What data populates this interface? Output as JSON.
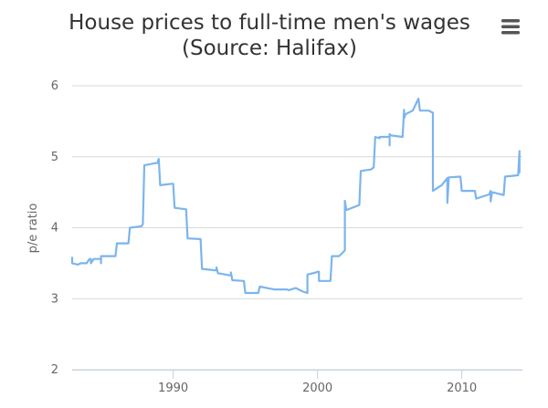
{
  "chart_data": {
    "type": "line",
    "title_line1": "House prices to full-time men's wages",
    "title_line2": "(Source: Halifax)",
    "xlabel": "",
    "ylabel": "p/e ratio",
    "xlim": [
      1983,
      2014.2
    ],
    "ylim": [
      2,
      6
    ],
    "yticks": [
      2,
      3,
      4,
      5,
      6
    ],
    "xticks": [
      1990,
      2000,
      2010
    ],
    "grid": "horizontal",
    "line_color": "#7cb5ec",
    "series": [
      {
        "x": [
          1983.0,
          1983.0,
          1983.4,
          1983.6,
          1984.0,
          1984.2,
          1984.3,
          1984.3,
          1984.5,
          1984.9,
          1985.0,
          1985.0,
          1985.0,
          1985.1,
          1986.0,
          1986.1,
          1986.9,
          1987.0,
          1987.8,
          1987.9,
          1988.0,
          1988.8,
          1988.9,
          1989.0,
          1989.1,
          1989.9,
          1990.0,
          1990.1,
          1990.9,
          1991.0,
          1991.8,
          1991.9,
          1992.0,
          1992.9,
          1993.0,
          1993.0,
          1993.1,
          1993.9,
          1994.0,
          1994.0,
          1994.1,
          1994.9,
          1995.0,
          1995.9,
          1996.0,
          1996.5,
          1997.0,
          1997.9,
          1998.0,
          1998.5,
          1999.0,
          1999.3,
          1999.3,
          1999.9,
          2000.0,
          2000.1,
          2000.1,
          2000.9,
          2001.0,
          2001.5,
          2001.9,
          2001.9,
          2002.0,
          2002.9,
          2003.0,
          2003.7,
          2003.9,
          2004.0,
          2004.3,
          2004.3,
          2004.9,
          2005.0,
          2005.0,
          2005.0,
          2005.1,
          2005.9,
          2006.0,
          2006.0,
          2006.1,
          2006.6,
          2007.0,
          2007.1,
          2007.7,
          2008.0,
          2008.0,
          2008.6,
          2009.0,
          2009.0,
          2009.1,
          2009.9,
          2010.0,
          2010.1,
          2010.9,
          2011.0,
          2011.9,
          2012.0,
          2012.0,
          2012.1,
          2012.9,
          2013.0,
          2013.9,
          2014.0,
          2014.0
        ],
        "y": [
          3.58,
          3.5,
          3.48,
          3.5,
          3.5,
          3.56,
          3.56,
          3.5,
          3.56,
          3.56,
          3.56,
          3.5,
          3.6,
          3.6,
          3.6,
          3.78,
          3.78,
          4.0,
          4.02,
          4.05,
          4.88,
          4.91,
          4.91,
          4.97,
          4.6,
          4.62,
          4.62,
          4.28,
          4.26,
          3.85,
          3.84,
          3.84,
          3.42,
          3.4,
          3.4,
          3.44,
          3.36,
          3.33,
          3.33,
          3.37,
          3.26,
          3.25,
          3.08,
          3.08,
          3.17,
          3.15,
          3.13,
          3.13,
          3.12,
          3.15,
          3.1,
          3.08,
          3.34,
          3.37,
          3.38,
          3.38,
          3.25,
          3.25,
          3.6,
          3.6,
          3.68,
          4.38,
          4.25,
          4.32,
          4.8,
          4.82,
          4.85,
          5.28,
          5.26,
          5.28,
          5.28,
          5.28,
          5.16,
          5.32,
          5.3,
          5.28,
          5.66,
          5.54,
          5.6,
          5.65,
          5.82,
          5.65,
          5.65,
          5.62,
          4.52,
          4.6,
          4.7,
          4.35,
          4.71,
          4.72,
          4.52,
          4.52,
          4.52,
          4.41,
          4.47,
          4.52,
          4.37,
          4.5,
          4.46,
          4.72,
          4.74,
          5.08,
          4.78
        ]
      }
    ]
  }
}
